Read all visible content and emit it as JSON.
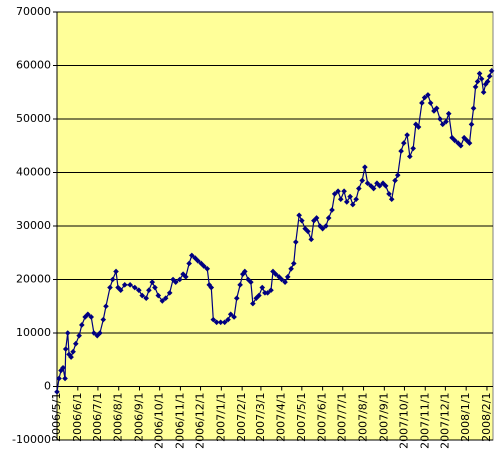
{
  "chart_data": {
    "type": "line",
    "x": [
      "2006/5/1",
      "2006/5/4",
      "2006/5/7",
      "2006/5/10",
      "2006/5/13",
      "2006/5/14",
      "2006/5/17",
      "2006/5/19",
      "2006/5/22",
      "2006/5/25",
      "2006/5/29",
      "2006/6/3",
      "2006/6/7",
      "2006/6/12",
      "2006/6/16",
      "2006/6/21",
      "2006/6/25",
      "2006/6/30",
      "2006/7/4",
      "2006/7/9",
      "2006/7/13",
      "2006/7/19",
      "2006/7/23",
      "2006/7/28",
      "2006/7/31",
      "2006/8/4",
      "2006/8/10",
      "2006/8/18",
      "2006/8/25",
      "2006/8/31",
      "2006/9/5",
      "2006/9/11",
      "2006/9/15",
      "2006/9/20",
      "2006/9/24",
      "2006/9/29",
      "2006/10/5",
      "2006/10/10",
      "2006/10/16",
      "2006/10/21",
      "2006/10/25",
      "2006/10/31",
      "2006/11/5",
      "2006/11/9",
      "2006/11/14",
      "2006/11/18",
      "2006/11/23",
      "2006/11/27",
      "2006/12/2",
      "2006/12/6",
      "2006/12/11",
      "2006/12/14",
      "2006/12/17",
      "2006/12/20",
      "2006/12/25",
      "2006/12/31",
      "2007/1/6",
      "2007/1/11",
      "2007/1/15",
      "2007/1/20",
      "2007/1/24",
      "2007/1/29",
      "2007/2/2",
      "2007/2/5",
      "2007/2/10",
      "2007/2/14",
      "2007/2/17",
      "2007/2/22",
      "2007/2/26",
      "2007/3/3",
      "2007/3/7",
      "2007/3/11",
      "2007/3/16",
      "2007/3/19",
      "2007/3/23",
      "2007/3/28",
      "2007/4/1",
      "2007/4/6",
      "2007/4/10",
      "2007/4/15",
      "2007/4/19",
      "2007/4/22",
      "2007/4/27",
      "2007/5/1",
      "2007/5/6",
      "2007/5/10",
      "2007/5/15",
      "2007/5/19",
      "2007/5/23",
      "2007/5/28",
      "2007/6/1",
      "2007/6/6",
      "2007/6/10",
      "2007/6/15",
      "2007/6/19",
      "2007/6/24",
      "2007/6/28",
      "2007/7/3",
      "2007/7/7",
      "2007/7/12",
      "2007/7/16",
      "2007/7/21",
      "2007/7/25",
      "2007/7/30",
      "2007/8/3",
      "2007/8/7",
      "2007/8/12",
      "2007/8/16",
      "2007/8/21",
      "2007/8/25",
      "2007/8/30",
      "2007/9/3",
      "2007/9/8",
      "2007/9/12",
      "2007/9/17",
      "2007/9/21",
      "2007/9/26",
      "2007/9/30",
      "2007/10/5",
      "2007/10/9",
      "2007/10/14",
      "2007/10/18",
      "2007/10/22",
      "2007/10/27",
      "2007/10/31",
      "2007/11/5",
      "2007/11/9",
      "2007/11/14",
      "2007/11/18",
      "2007/11/23",
      "2007/11/27",
      "2007/12/2",
      "2007/12/6",
      "2007/12/11",
      "2007/12/15",
      "2007/12/20",
      "2007/12/24",
      "2007/12/29",
      "2008/1/2",
      "2008/1/6",
      "2008/1/9",
      "2008/1/12",
      "2008/1/15",
      "2008/1/18",
      "2008/1/21",
      "2008/1/24",
      "2008/1/27",
      "2008/1/30",
      "2008/2/2",
      "2008/2/5",
      "2008/2/8"
    ],
    "series": [
      {
        "color": "#000080",
        "values": [
          -1000,
          1500,
          3000,
          3500,
          1500,
          7000,
          10000,
          6000,
          5500,
          6500,
          8000,
          9500,
          11500,
          13000,
          13500,
          13000,
          10000,
          9500,
          10000,
          12500,
          15000,
          18500,
          20000,
          21500,
          18500,
          18000,
          19000,
          19000,
          18500,
          18000,
          17000,
          16500,
          18000,
          19500,
          18500,
          17000,
          16000,
          16500,
          17500,
          20000,
          19500,
          20000,
          21000,
          20500,
          23000,
          24500,
          24000,
          23500,
          23000,
          22500,
          22000,
          19000,
          18500,
          12500,
          12000,
          12000,
          12000,
          12500,
          13500,
          13000,
          16500,
          19000,
          21000,
          21500,
          20000,
          19500,
          15500,
          16500,
          17000,
          18500,
          17500,
          17500,
          18000,
          21500,
          21000,
          20500,
          20000,
          19500,
          20500,
          22000,
          23000,
          27000,
          32000,
          31000,
          29500,
          29000,
          27500,
          31000,
          31500,
          30000,
          29500,
          30000,
          31500,
          33000,
          36000,
          36500,
          35000,
          36500,
          34500,
          35500,
          34000,
          35000,
          37000,
          38500,
          41000,
          38000,
          37500,
          37000,
          38000,
          37500,
          38000,
          37500,
          36000,
          35000,
          38500,
          39500,
          44000,
          45500,
          47000,
          43000,
          44500,
          49000,
          48500,
          53000,
          54000,
          54500,
          53000,
          51500,
          52000,
          50000,
          49000,
          49500,
          51000,
          46500,
          46000,
          45500,
          45000,
          46500,
          46000,
          45500,
          49000,
          52000,
          56000,
          57000,
          58500,
          57500,
          55000,
          56500,
          57000,
          58000,
          59000
        ]
      }
    ],
    "xlim": [
      "2006/5/1",
      "2008/2/10"
    ],
    "xticks": [
      "2006/5/1",
      "2006/6/1",
      "2006/7/1",
      "2006/8/1",
      "2006/9/1",
      "2006/10/1",
      "2006/11/1",
      "2006/12/1",
      "2007/1/1",
      "2007/2/1",
      "2007/3/1",
      "2007/4/1",
      "2007/5/1",
      "2007/6/1",
      "2007/7/1",
      "2007/8/1",
      "2007/9/1",
      "2007/10/1",
      "2007/11/1",
      "2007/12/1",
      "2008/1/1",
      "2008/2/1"
    ],
    "ylim": [
      -10000,
      70000
    ],
    "yticks": [
      -10000,
      0,
      10000,
      20000,
      30000,
      40000,
      50000,
      60000,
      70000
    ],
    "grid": true,
    "background": "#ffff99"
  }
}
